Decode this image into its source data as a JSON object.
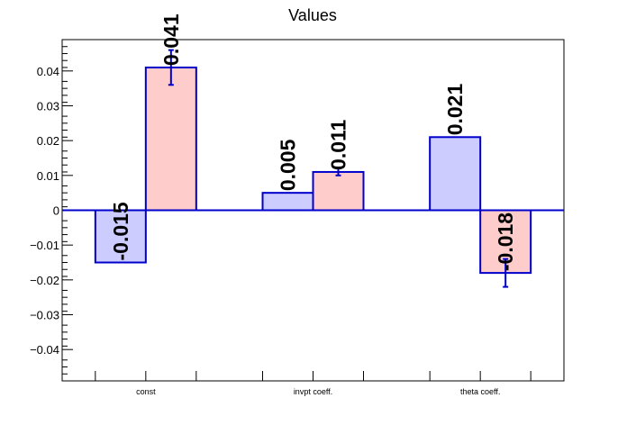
{
  "chart_data": {
    "type": "bar",
    "title": "Values",
    "xlabel": "",
    "ylabel": "",
    "categories": [
      "const",
      "invpt coeff.",
      "theta coeff."
    ],
    "series": [
      {
        "color": "#ccccff",
        "values": [
          -0.015,
          0.005,
          0.021
        ],
        "labels": [
          "-0.015",
          "0.005",
          "0.021"
        ],
        "errors": [
          0,
          0,
          0
        ]
      },
      {
        "color": "#ffcccc",
        "values": [
          0.041,
          0.011,
          -0.018
        ],
        "labels": [
          "0.041",
          "0.011",
          "-0.018"
        ],
        "errors": [
          0.005,
          0.001,
          0.004
        ]
      }
    ],
    "ylim": [
      -0.049,
      0.049
    ],
    "yticks": [
      -0.04,
      -0.03,
      -0.02,
      -0.01,
      0,
      0.01,
      0.02,
      0.03,
      0.04
    ],
    "ytick_labels": [
      "−0.04",
      "−0.03",
      "−0.02",
      "−0.01",
      "0",
      "0.01",
      "0.02",
      "0.03",
      "0.04"
    ],
    "bar_edge_color": "#0000cc",
    "grid": false,
    "legend": "none"
  }
}
